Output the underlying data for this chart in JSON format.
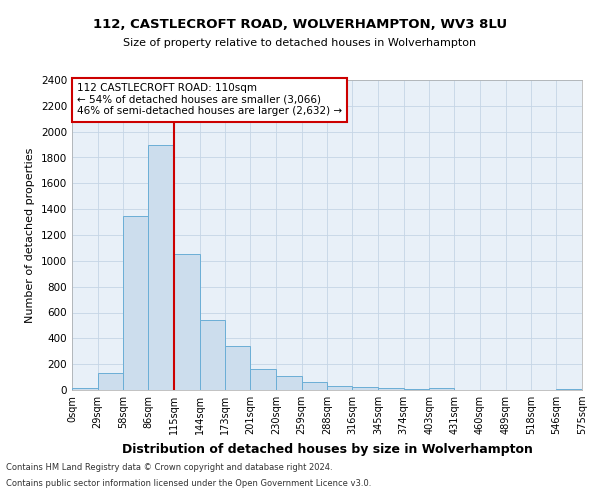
{
  "title1": "112, CASTLECROFT ROAD, WOLVERHAMPTON, WV3 8LU",
  "title2": "Size of property relative to detached houses in Wolverhampton",
  "xlabel": "Distribution of detached houses by size in Wolverhampton",
  "ylabel": "Number of detached properties",
  "footnote1": "Contains HM Land Registry data © Crown copyright and database right 2024.",
  "footnote2": "Contains public sector information licensed under the Open Government Licence v3.0.",
  "annotation_line1": "112 CASTLECROFT ROAD: 110sqm",
  "annotation_line2": "← 54% of detached houses are smaller (3,066)",
  "annotation_line3": "46% of semi-detached houses are larger (2,632) →",
  "bar_edges": [
    0,
    29,
    58,
    86,
    115,
    144,
    173,
    201,
    230,
    259,
    288,
    316,
    345,
    374,
    403,
    431,
    460,
    489,
    518,
    546,
    575
  ],
  "bar_heights": [
    15,
    135,
    1350,
    1900,
    1050,
    540,
    340,
    165,
    110,
    60,
    30,
    20,
    12,
    8,
    15,
    3,
    3,
    2,
    2,
    10
  ],
  "bar_color": "#ccdded",
  "bar_edge_color": "#6baed6",
  "red_line_x": 115,
  "annotation_box_color": "#ffffff",
  "annotation_box_edge": "#cc0000",
  "red_line_color": "#cc0000",
  "grid_color": "#c5d5e5",
  "background_color": "#e8f0f8",
  "ylim": [
    0,
    2400
  ],
  "yticks": [
    0,
    200,
    400,
    600,
    800,
    1000,
    1200,
    1400,
    1600,
    1800,
    2000,
    2200,
    2400
  ]
}
